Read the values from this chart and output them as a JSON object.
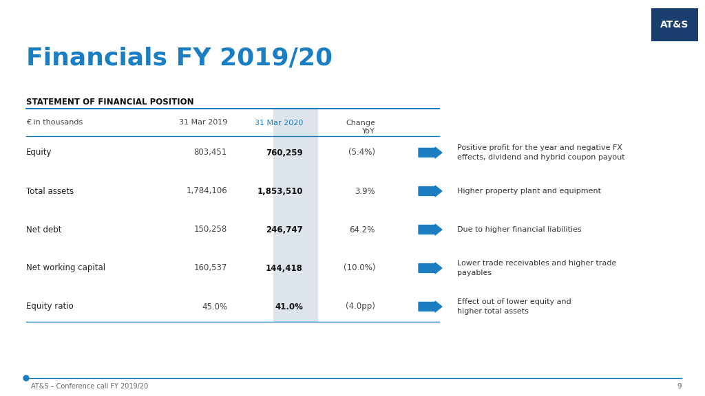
{
  "title": "Financials FY 2019/20",
  "title_color": "#1B7EC2",
  "title_fontsize": 26,
  "background_color": "#FFFFFF",
  "section_header": "STATEMENT OF FINANCIAL POSITION",
  "col_header_year1": "31 Mar 2019",
  "col_header_year2": "31 Mar 2020",
  "col_header_change": "Change\nYoY",
  "col_header_year1_color": "#444444",
  "col_header_year2_color": "#1B7EC2",
  "unit_label": "€ in thousands",
  "rows": [
    {
      "label": "Equity",
      "val2019": "803,451",
      "val2020": "760,259",
      "change": "(5.4%)",
      "comment": "Positive profit for the year and negative FX\neffects, dividend and hybrid coupon payout"
    },
    {
      "label": "Total assets",
      "val2019": "1,784,106",
      "val2020": "1,853,510",
      "change": "3.9%",
      "comment": "Higher property plant and equipment"
    },
    {
      "label": "Net debt",
      "val2019": "150,258",
      "val2020": "246,747",
      "change": "64.2%",
      "comment": "Due to higher financial liabilities"
    },
    {
      "label": "Net working capital",
      "val2019": "160,537",
      "val2020": "144,418",
      "change": "(10.0%)",
      "comment": "Lower trade receivables and higher trade\npayables"
    },
    {
      "label": "Equity ratio",
      "val2019": "45.0%",
      "val2020": "41.0%",
      "change": "(4.0pp)",
      "comment": "Effect out of lower equity and\nhigher total assets"
    }
  ],
  "arrow_color": "#1B7EC2",
  "highlight_col_color": "#DDE4EC",
  "line_color": "#1B7EC2",
  "footer_text": "AT&S – Conference call FY 2019/20",
  "footer_page": "9",
  "logo_bg": "#1A3F6F",
  "logo_text": "AT&S"
}
